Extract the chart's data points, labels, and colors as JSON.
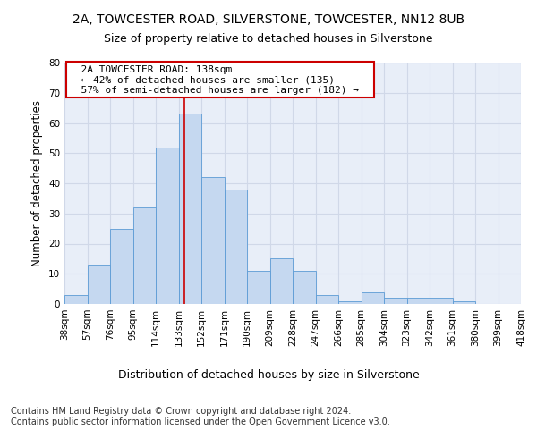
{
  "title1": "2A, TOWCESTER ROAD, SILVERSTONE, TOWCESTER, NN12 8UB",
  "title2": "Size of property relative to detached houses in Silverstone",
  "xlabel": "Distribution of detached houses by size in Silverstone",
  "ylabel": "Number of detached properties",
  "bin_labels": [
    "38sqm",
    "57sqm",
    "76sqm",
    "95sqm",
    "114sqm",
    "133sqm",
    "152sqm",
    "171sqm",
    "190sqm",
    "209sqm",
    "228sqm",
    "247sqm",
    "266sqm",
    "285sqm",
    "304sqm",
    "323sqm",
    "342sqm",
    "361sqm",
    "380sqm",
    "399sqm",
    "418sqm"
  ],
  "bar_values": [
    3,
    13,
    25,
    32,
    52,
    63,
    42,
    38,
    11,
    15,
    11,
    3,
    1,
    4,
    2,
    2,
    2,
    1,
    0,
    0
  ],
  "bin_edges": [
    38,
    57,
    76,
    95,
    114,
    133,
    152,
    171,
    190,
    209,
    228,
    247,
    266,
    285,
    304,
    323,
    342,
    361,
    380,
    399,
    418
  ],
  "bar_color": "#c5d8f0",
  "bar_edgecolor": "#5b9bd5",
  "vline_x": 138,
  "vline_color": "#cc0000",
  "annotation_text": "  2A TOWCESTER ROAD: 138sqm  \n  ← 42% of detached houses are smaller (135)  \n  57% of semi-detached houses are larger (182) →  ",
  "annotation_box_color": "#ffffff",
  "annotation_box_edgecolor": "#cc0000",
  "ylim": [
    0,
    80
  ],
  "yticks": [
    0,
    10,
    20,
    30,
    40,
    50,
    60,
    70,
    80
  ],
  "grid_color": "#d0d8e8",
  "background_color": "#e8eef8",
  "footer_text": "Contains HM Land Registry data © Crown copyright and database right 2024.\nContains public sector information licensed under the Open Government Licence v3.0.",
  "title1_fontsize": 10,
  "title2_fontsize": 9,
  "xlabel_fontsize": 9,
  "ylabel_fontsize": 8.5,
  "tick_fontsize": 7.5,
  "annotation_fontsize": 8,
  "footer_fontsize": 7
}
